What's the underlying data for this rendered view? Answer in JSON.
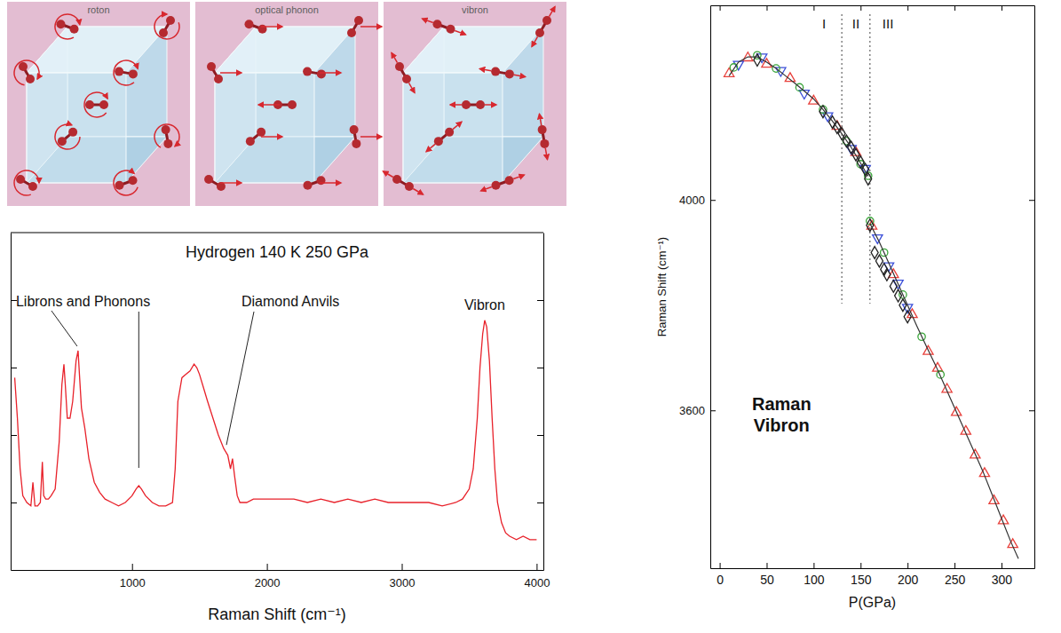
{
  "diagrams": {
    "panels": [
      {
        "title": "roton"
      },
      {
        "title": "optical phonon"
      },
      {
        "title": "vibron"
      }
    ]
  },
  "chart_data": [
    {
      "type": "line",
      "title": "Hydrogen 140 K 250 GPa",
      "x_label": "Raman Shift (cm⁻¹)",
      "color": "#e8212a",
      "x": [
        130,
        150,
        170,
        190,
        220,
        250,
        265,
        280,
        300,
        320,
        335,
        345,
        360,
        380,
        400,
        430,
        460,
        480,
        495,
        505,
        520,
        540,
        560,
        585,
        600,
        610,
        625,
        650,
        680,
        720,
        760,
        800,
        850,
        900,
        950,
        1000,
        1030,
        1050,
        1070,
        1100,
        1150,
        1200,
        1250,
        1300,
        1320,
        1340,
        1370,
        1400,
        1430,
        1460,
        1480,
        1500,
        1530,
        1560,
        1600,
        1640,
        1680,
        1710,
        1730,
        1745,
        1760,
        1780,
        1800,
        1850,
        1900,
        2000,
        2100,
        2200,
        2300,
        2400,
        2500,
        2600,
        2700,
        2800,
        2900,
        3000,
        3100,
        3200,
        3300,
        3400,
        3450,
        3500,
        3530,
        3560,
        3580,
        3600,
        3615,
        3630,
        3650,
        3670,
        3690,
        3710,
        3740,
        3770,
        3800,
        3850,
        3900,
        3950,
        4000
      ],
      "values": [
        57,
        45,
        30,
        22,
        20,
        19,
        26,
        19,
        19,
        20,
        32,
        22,
        21,
        21,
        22,
        24,
        38,
        55,
        61,
        55,
        45,
        45,
        50,
        62,
        65,
        58,
        48,
        42,
        33,
        26,
        23,
        21,
        20,
        19,
        20,
        22,
        24,
        25,
        24,
        22,
        20,
        19,
        19,
        20,
        30,
        50,
        57,
        58,
        59,
        61,
        60,
        58,
        54,
        50,
        45,
        40,
        36,
        34,
        30,
        33,
        28,
        22,
        20,
        20,
        21,
        21,
        21,
        21,
        20,
        21,
        20,
        21,
        20,
        21,
        20,
        20,
        20,
        20,
        19,
        20,
        21,
        24,
        30,
        45,
        60,
        70,
        74,
        72,
        62,
        45,
        30,
        20,
        14,
        11,
        10,
        9,
        10,
        9,
        9
      ],
      "xlim": [
        100,
        4050
      ],
      "xticks": [
        1000,
        2000,
        3000,
        4000
      ],
      "ylim": [
        0,
        100
      ],
      "yticks": [
        20,
        40,
        60,
        80
      ],
      "tick_labels": "x",
      "grid": false,
      "annotations": [
        {
          "text": "Librons and Phonons",
          "targets": [
            {
              "x": 600,
              "y": 65
            },
            {
              "x": 1050,
              "y": 25
            }
          ]
        },
        {
          "text": "Diamond Anvils",
          "targets": [
            {
              "x": 1680,
              "y": 36
            }
          ]
        },
        {
          "text": "Vibron",
          "targets": [
            {
              "x": 3615,
              "y": 74
            }
          ]
        }
      ]
    },
    {
      "type": "scatter",
      "x_label": "P(GPa)",
      "y_label": "Raman Shift (cm⁻¹)",
      "xlim": [
        -10,
        335
      ],
      "xticks": [
        0,
        50,
        100,
        150,
        200,
        250,
        300
      ],
      "ylim": [
        3300,
        4370
      ],
      "yticks": [
        3600,
        4000
      ],
      "grid": false,
      "boundaries": [
        130,
        160
      ],
      "regions": [
        "I",
        "II",
        "III"
      ],
      "annotations": [
        {
          "text": "Raman Vibron"
        }
      ],
      "series": [
        {
          "type": "scatter",
          "marker": "triangle-up",
          "color": "#e8413c",
          "x": [
            10,
            30,
            50,
            75,
            100,
            125,
            145,
            162,
            185,
            205,
            222,
            232,
            242,
            252,
            262,
            272,
            282,
            292,
            302,
            312
          ],
          "values": [
            4240,
            4270,
            4258,
            4231,
            4188,
            4140,
            4090,
            3950,
            3858,
            3782,
            3712,
            3680,
            3640,
            3596,
            3560,
            3515,
            3480,
            3428,
            3390,
            3345
          ]
        },
        {
          "type": "scatter",
          "marker": "triangle-down",
          "color": "#3b4fd8",
          "x": [
            20,
            45,
            65,
            90,
            115,
            140,
            155,
            168,
            180,
            190,
            200
          ],
          "values": [
            4258,
            4272,
            4246,
            4203,
            4160,
            4098,
            4060,
            3928,
            3875,
            3842,
            3796
          ]
        },
        {
          "type": "scatter",
          "marker": "circle",
          "color": "#3aa53a",
          "x": [
            15,
            40,
            60,
            85,
            110,
            135,
            150,
            158,
            160,
            175,
            195,
            215,
            235
          ],
          "values": [
            4252,
            4275,
            4250,
            4214,
            4172,
            4112,
            4068,
            4046,
            3960,
            3900,
            3820,
            3740,
            3668
          ]
        },
        {
          "type": "scatter",
          "marker": "diamond",
          "color": "#222222",
          "x": [
            40,
            110,
            120,
            125,
            130,
            135,
            140,
            145,
            150,
            155,
            158,
            160,
            165,
            170,
            175,
            178,
            185,
            190,
            195,
            200
          ],
          "values": [
            4266,
            4168,
            4148,
            4138,
            4126,
            4112,
            4100,
            4086,
            4072,
            4058,
            4040,
            3952,
            3900,
            3884,
            3868,
            3858,
            3836,
            3818,
            3800,
            3778
          ]
        },
        {
          "type": "line",
          "line_style": "solid",
          "color": "#333333",
          "x": [
            10,
            20,
            30,
            40,
            50,
            60,
            70,
            80,
            90,
            100,
            110,
            120,
            130,
            140,
            150,
            158,
            159,
            160,
            170,
            180,
            190,
            200,
            210,
            220,
            230,
            240,
            250,
            260,
            270,
            280,
            290,
            300,
            310,
            318
          ],
          "values": [
            4236,
            4262,
            4272,
            4272,
            4262,
            4250,
            4236,
            4222,
            4207,
            4192,
            4172,
            4150,
            4126,
            4100,
            4070,
            4045,
            null,
            3955,
            3920,
            3880,
            3840,
            3800,
            3760,
            3722,
            3685,
            3645,
            3605,
            3565,
            3525,
            3485,
            3440,
            3395,
            3350,
            3318
          ]
        }
      ]
    }
  ]
}
